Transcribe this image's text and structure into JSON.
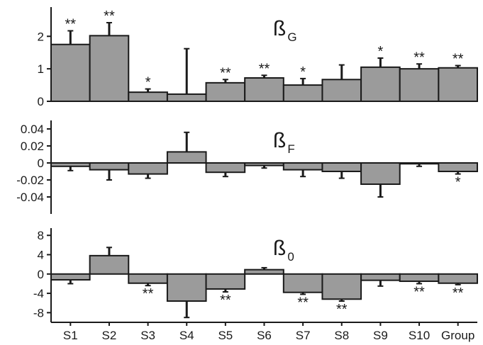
{
  "chart_data": [
    {
      "type": "bar",
      "title": "ß",
      "title_subscript": "G",
      "categories": [
        "S1",
        "S2",
        "S3",
        "S4",
        "S5",
        "S6",
        "S7",
        "S8",
        "S9",
        "S10",
        "Group"
      ],
      "values": [
        1.75,
        2.02,
        0.28,
        0.22,
        0.57,
        0.72,
        0.5,
        0.67,
        1.05,
        1.0,
        1.03
      ],
      "error": [
        0.42,
        0.4,
        0.1,
        1.4,
        0.1,
        0.08,
        0.2,
        0.45,
        0.28,
        0.15,
        0.07
      ],
      "significance": [
        "**",
        "**",
        "*",
        "",
        "**",
        "**",
        "*",
        "",
        "*",
        "**",
        "**"
      ],
      "ylim": [
        0,
        2.9
      ],
      "yticks": [
        0,
        1,
        2
      ],
      "ytick_labels": [
        "0",
        "1",
        "2"
      ]
    },
    {
      "type": "bar",
      "title": "ß",
      "title_subscript": "F",
      "categories": [
        "S1",
        "S2",
        "S3",
        "S4",
        "S5",
        "S6",
        "S7",
        "S8",
        "S9",
        "S10",
        "Group"
      ],
      "values": [
        -0.004,
        -0.008,
        -0.013,
        0.013,
        -0.011,
        -0.003,
        -0.008,
        -0.01,
        -0.025,
        -0.001,
        -0.01
      ],
      "error": [
        0.005,
        0.012,
        0.005,
        0.023,
        0.005,
        0.003,
        0.008,
        0.008,
        0.015,
        0.003,
        0.003
      ],
      "significance": [
        "",
        "",
        "",
        "",
        "",
        "",
        "",
        "",
        "",
        "",
        "*"
      ],
      "ylim": [
        -0.06,
        0.05
      ],
      "yticks": [
        0.04,
        0.02,
        0,
        -0.02,
        -0.04
      ],
      "ytick_labels": [
        "0.04",
        "0.02",
        "0",
        "-0.02",
        "-0.04"
      ]
    },
    {
      "type": "bar",
      "title": "ß",
      "title_subscript": "0",
      "categories": [
        "S1",
        "S2",
        "S3",
        "S4",
        "S5",
        "S6",
        "S7",
        "S8",
        "S9",
        "S10",
        "Group"
      ],
      "values": [
        -1.2,
        3.8,
        -1.9,
        -5.6,
        -3.1,
        0.9,
        -3.8,
        -5.2,
        -1.3,
        -1.5,
        -1.9
      ],
      "error": [
        0.8,
        1.7,
        0.5,
        3.4,
        0.6,
        0.4,
        0.4,
        0.4,
        1.2,
        0.5,
        0.3
      ],
      "significance": [
        "",
        "",
        "**",
        "",
        "**",
        "",
        "**",
        "**",
        "",
        "**",
        "**"
      ],
      "ylim": [
        -10,
        9.5
      ],
      "yticks": [
        8,
        4,
        0,
        -4,
        -8
      ],
      "ytick_labels": [
        "8",
        "4",
        "0",
        "-4",
        "-8"
      ]
    }
  ],
  "colors": {
    "bar_fill": "#9b9b9b",
    "bar_stroke": "#1a1a1a",
    "axis": "#1a1a1a"
  }
}
